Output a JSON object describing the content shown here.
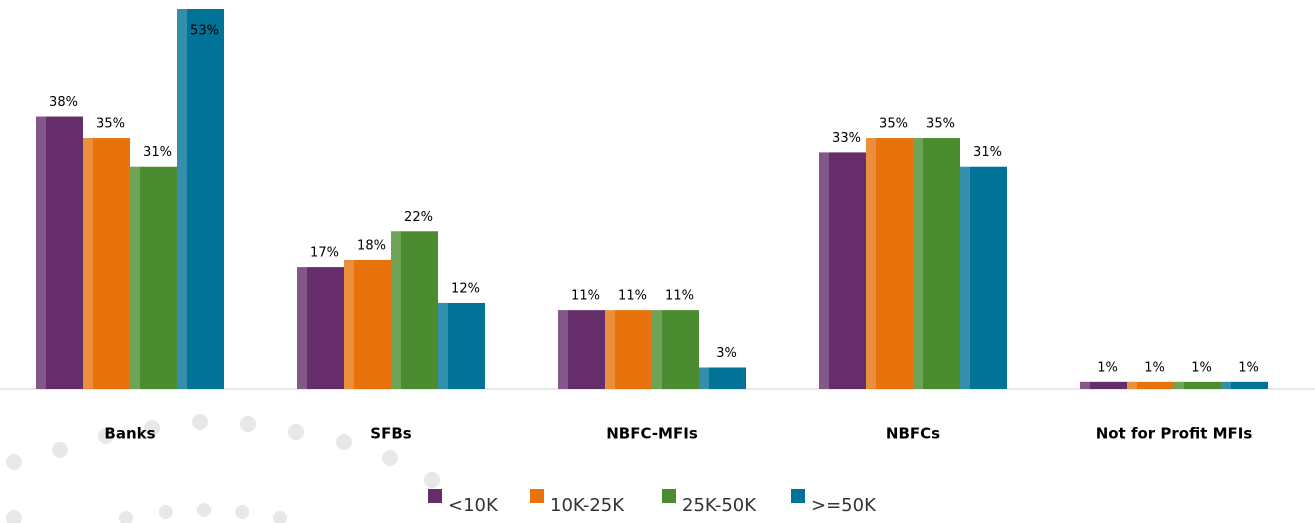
{
  "chart_data": {
    "type": "bar",
    "categories": [
      "Banks",
      "SFBs",
      "NBFC-MFIs",
      "NBFCs",
      "Not for Profit MFIs"
    ],
    "series": [
      {
        "name": "<10K",
        "color": "#652d6a",
        "values": [
          38,
          17,
          11,
          33,
          1
        ],
        "value_labels": [
          "38%",
          "17%",
          "11%",
          "33%",
          "1%"
        ]
      },
      {
        "name": "10K-25K",
        "color": "#e8730c",
        "values": [
          35,
          18,
          11,
          35,
          1
        ],
        "value_labels": [
          "35%",
          "18%",
          "11%",
          "35%",
          "1%"
        ]
      },
      {
        "name": "25K-50K",
        "color": "#4a8c2f",
        "values": [
          31,
          22,
          11,
          35,
          1
        ],
        "value_labels": [
          "31%",
          "22%",
          "11%",
          "35%",
          "1%"
        ]
      },
      {
        "name": ">=50K",
        "color": "#007396",
        "values": [
          53,
          12,
          3,
          31,
          1
        ],
        "value_labels": [
          "53%",
          "12%",
          "3%",
          "31%",
          "1%"
        ]
      }
    ]
  }
}
